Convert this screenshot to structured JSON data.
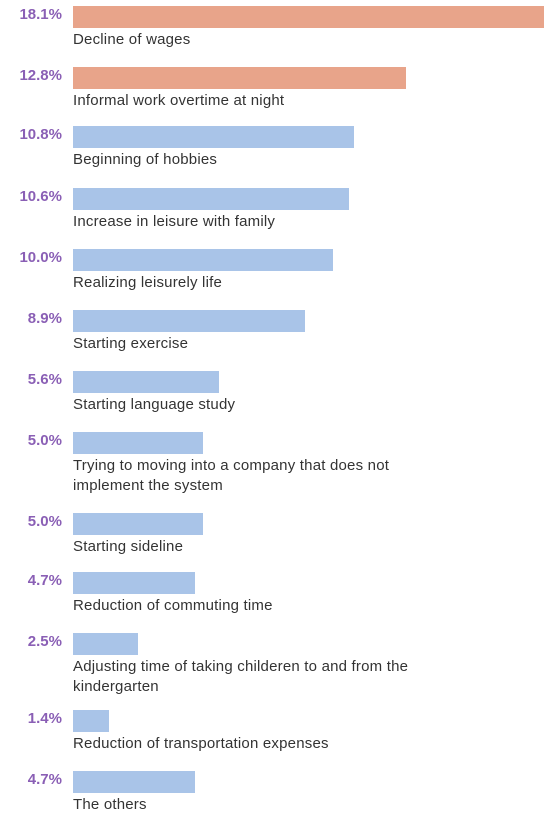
{
  "colors": {
    "highlight": "#e8a48a",
    "normal": "#a9c4e8",
    "percent_text": "#8a5fb5",
    "label_text": "#333333"
  },
  "chart_data": {
    "type": "bar",
    "orientation": "horizontal",
    "categories": [
      "Decline of wages",
      "Informal work overtime at night",
      "Beginning of hobbies",
      "Increase in leisure with family",
      "Realizing leisurely life",
      "Starting exercise",
      "Starting language study",
      "Trying to moving into a company that does not implement the system",
      "Starting sideline",
      "Reduction of commuting time",
      "Adjusting time of taking childeren to and from the kindergarten",
      "Reduction of transportation expenses",
      "The others"
    ],
    "values": [
      18.1,
      12.8,
      10.8,
      10.6,
      10.0,
      8.9,
      5.6,
      5.0,
      5.0,
      4.7,
      2.5,
      1.4,
      4.7
    ],
    "value_labels": [
      "18.1%",
      "12.8%",
      "10.8%",
      "10.6%",
      "10.0%",
      "8.9%",
      "5.6%",
      "5.0%",
      "5.0%",
      "4.7%",
      "2.5%",
      "1.4%",
      "4.7%"
    ],
    "highlighted": [
      true,
      true,
      false,
      false,
      false,
      false,
      false,
      false,
      false,
      false,
      false,
      false,
      false
    ],
    "xlim": [
      0,
      18.1
    ],
    "unit": "%",
    "title": "",
    "xlabel": "",
    "ylabel": ""
  }
}
